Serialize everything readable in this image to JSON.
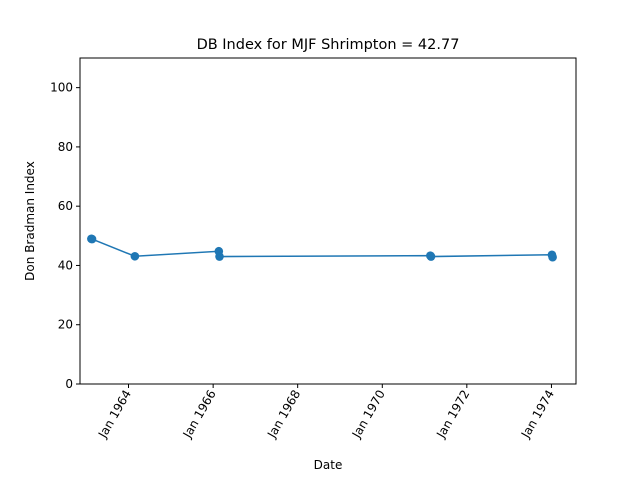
{
  "chart_data": {
    "type": "line",
    "title": "DB Index for MJF Shrimpton = 42.77",
    "xlabel": "Date",
    "ylabel": "Don Bradman Index",
    "x_tick_labels": [
      "Jan 1964",
      "Jan 1966",
      "Jan 1968",
      "Jan 1970",
      "Jan 1972",
      "Jan 1974"
    ],
    "x_ticks": [
      "1964-01-01",
      "1966-01-01",
      "1968-01-01",
      "1970-01-01",
      "1972-01-01",
      "1974-01-01"
    ],
    "y_tick_labels": [
      "0",
      "20",
      "40",
      "60",
      "80",
      "100"
    ],
    "y_ticks": [
      0,
      20,
      40,
      60,
      80,
      100
    ],
    "xlim": [
      "1962-11-08",
      "1974-08-01"
    ],
    "ylim": [
      0,
      110
    ],
    "grid": false,
    "series": [
      {
        "color": "#1f77b4",
        "points": [
          {
            "x": "1963-02-14",
            "y": 49.0
          },
          {
            "x": "1963-02-20",
            "y": 48.9
          },
          {
            "x": "1964-02-25",
            "y": 43.1
          },
          {
            "x": "1966-02-19",
            "y": 44.8
          },
          {
            "x": "1966-02-25",
            "y": 43.0
          },
          {
            "x": "1971-02-20",
            "y": 43.3
          },
          {
            "x": "1971-02-26",
            "y": 43.0
          },
          {
            "x": "1974-01-05",
            "y": 43.6
          },
          {
            "x": "1974-01-11",
            "y": 42.8
          }
        ]
      }
    ]
  }
}
